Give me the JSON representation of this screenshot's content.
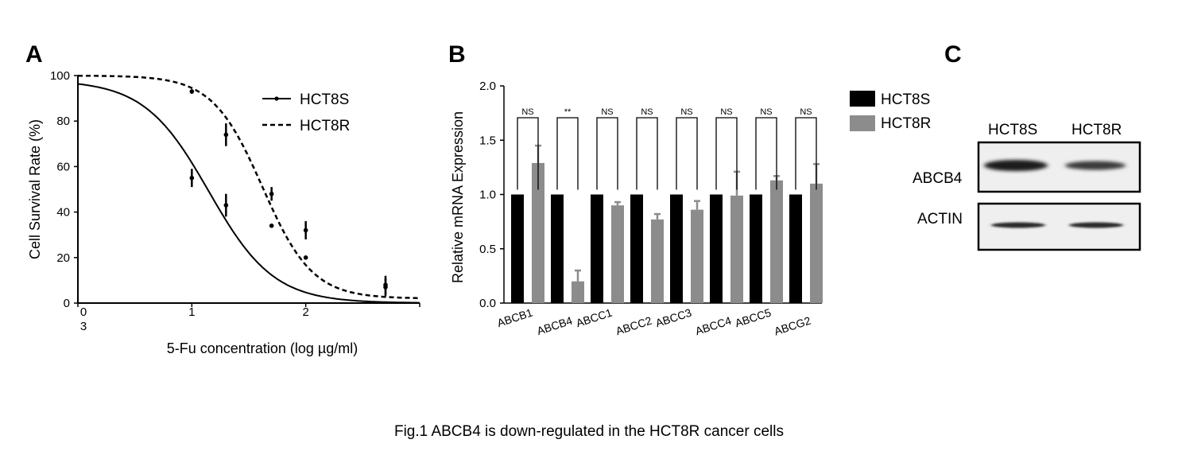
{
  "caption": "Fig.1 ABCB4 is down-regulated in the HCT8R cancer cells",
  "panels": {
    "a": "A",
    "b": "B",
    "c": "C"
  },
  "chart_data": [
    {
      "type": "line",
      "panel": "A",
      "xlabel": "5-Fu concentration (log µg/ml)",
      "ylabel": "Cell Survival Rate (%)",
      "xlim": [
        0,
        3
      ],
      "ylim": [
        0,
        100
      ],
      "x_ticks": [
        "0",
        "1",
        "2",
        "3"
      ],
      "y_ticks": [
        "0",
        "20",
        "40",
        "60",
        "80",
        "100"
      ],
      "legend_position": "top-right",
      "series": [
        {
          "name": "HCT8S",
          "style": "solid",
          "points": [
            {
              "x": 1.0,
              "y": 55,
              "err": 4
            },
            {
              "x": 1.3,
              "y": 43,
              "err": 5
            },
            {
              "x": 1.7,
              "y": 34,
              "err": 0
            },
            {
              "x": 2.0,
              "y": 20,
              "err": 0
            },
            {
              "x": 2.7,
              "y": 7,
              "err": 4
            }
          ],
          "curve": {
            "top": 98,
            "bottom": 0,
            "logIC50": 1.15,
            "hill": 0.85
          }
        },
        {
          "name": "HCT8R",
          "style": "dashed",
          "points": [
            {
              "x": 1.0,
              "y": 93,
              "err": 1
            },
            {
              "x": 1.3,
              "y": 74,
              "err": 5
            },
            {
              "x": 1.7,
              "y": 48,
              "err": 3
            },
            {
              "x": 2.0,
              "y": 32,
              "err": 4
            },
            {
              "x": 2.7,
              "y": 8,
              "err": 4
            }
          ],
          "curve": {
            "top": 100,
            "bottom": 2,
            "logIC50": 1.62,
            "hill": 1.1
          }
        }
      ]
    },
    {
      "type": "bar",
      "panel": "B",
      "ylabel": "Relative mRNA Expression",
      "ylim": [
        0,
        2.0
      ],
      "y_ticks": [
        "0.0",
        "0.5",
        "1.0",
        "1.5",
        "2.0"
      ],
      "categories": [
        "ABCB1",
        "ABCB4",
        "ABCC1",
        "ABCC2",
        "ABCC3",
        "ABCC4",
        "ABCC5",
        "ABCG2"
      ],
      "significance": [
        "NS",
        "**",
        "NS",
        "NS",
        "NS",
        "NS",
        "NS",
        "NS"
      ],
      "legend_position": "right",
      "series": [
        {
          "name": "HCT8S",
          "color": "#000000",
          "values": [
            1.0,
            1.0,
            1.0,
            1.0,
            1.0,
            1.0,
            1.0,
            1.0
          ],
          "errors": [
            0,
            0,
            0,
            0,
            0,
            0,
            0,
            0
          ]
        },
        {
          "name": "HCT8R",
          "color": "#8c8c8c",
          "values": [
            1.29,
            0.2,
            0.9,
            0.77,
            0.86,
            0.99,
            1.13,
            1.1
          ],
          "errors": [
            0.16,
            0.1,
            0.03,
            0.05,
            0.08,
            0.22,
            0.04,
            0.18
          ]
        }
      ]
    }
  ],
  "blot": {
    "columns": [
      "HCT8S",
      "HCT8R"
    ],
    "rows": [
      "ABCB4",
      "ACTIN"
    ]
  }
}
